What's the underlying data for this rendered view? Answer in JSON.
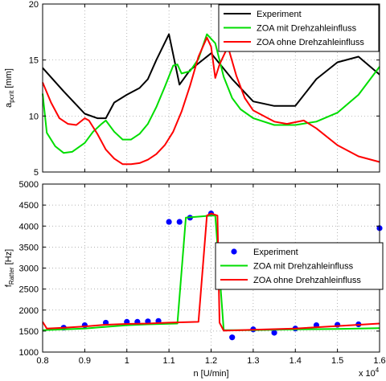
{
  "figure": {
    "x_multiplier_base": "x 10",
    "x_multiplier_exp": "4"
  },
  "chart_data": [
    {
      "type": "line",
      "id": "top",
      "title": "",
      "xlabel": "",
      "ylabel": {
        "main": "a",
        "sub": "pcrit",
        "unit": " [mm]"
      },
      "xlim": [
        0.8,
        1.6
      ],
      "ylim": [
        5,
        20
      ],
      "xticks": [
        0.8,
        0.9,
        1.0,
        1.1,
        1.2,
        1.3,
        1.4,
        1.5,
        1.6
      ],
      "xticklabels": [],
      "yticks": [
        5,
        10,
        15,
        20
      ],
      "yticklabels": [
        "5",
        "10",
        "15",
        "20"
      ],
      "grid": true,
      "legend": "top-right",
      "series": [
        {
          "name": "Experiment",
          "color": "#000000",
          "marker": "none",
          "x": [
            0.8,
            0.85,
            0.9,
            0.93,
            0.95,
            0.97,
            1.0,
            1.03,
            1.05,
            1.07,
            1.1,
            1.125,
            1.15,
            1.2,
            1.25,
            1.3,
            1.35,
            1.4,
            1.45,
            1.5,
            1.55,
            1.6
          ],
          "y": [
            14.3,
            12.2,
            10.2,
            9.8,
            9.8,
            11.2,
            11.9,
            12.5,
            13.3,
            15.0,
            17.3,
            12.8,
            14.1,
            15.6,
            13.3,
            11.3,
            10.9,
            10.9,
            13.3,
            14.8,
            15.3,
            13.7
          ]
        },
        {
          "name": "ZOA mit Drehzahleinfluss",
          "color": "#00dd00",
          "marker": "none",
          "x": [
            0.8,
            0.81,
            0.83,
            0.85,
            0.87,
            0.9,
            0.92,
            0.94,
            0.95,
            0.97,
            0.99,
            1.01,
            1.03,
            1.05,
            1.07,
            1.09,
            1.11,
            1.12,
            1.13,
            1.15,
            1.17,
            1.19,
            1.21,
            1.23,
            1.25,
            1.27,
            1.3,
            1.35,
            1.4,
            1.45,
            1.5,
            1.55,
            1.6
          ],
          "y": [
            12.0,
            8.5,
            7.3,
            6.7,
            6.8,
            7.6,
            8.6,
            9.3,
            9.6,
            8.6,
            7.9,
            7.9,
            8.4,
            9.3,
            10.8,
            12.6,
            14.5,
            14.6,
            13.8,
            14.0,
            15.1,
            17.3,
            16.5,
            13.5,
            11.6,
            10.6,
            9.8,
            9.2,
            9.2,
            9.5,
            10.3,
            11.9,
            14.4
          ]
        },
        {
          "name": "ZOA ohne Drehzahleinfluss",
          "color": "#ff0000",
          "marker": "none",
          "x": [
            0.8,
            0.82,
            0.84,
            0.86,
            0.88,
            0.9,
            0.91,
            0.93,
            0.95,
            0.97,
            0.99,
            1.01,
            1.03,
            1.05,
            1.07,
            1.09,
            1.11,
            1.13,
            1.15,
            1.17,
            1.19,
            1.2,
            1.21,
            1.22,
            1.24,
            1.26,
            1.28,
            1.3,
            1.35,
            1.38,
            1.42,
            1.45,
            1.5,
            1.55,
            1.6
          ],
          "y": [
            13.0,
            11.2,
            9.8,
            9.3,
            9.2,
            9.8,
            9.6,
            8.4,
            7.0,
            6.2,
            5.7,
            5.7,
            5.8,
            6.1,
            6.6,
            7.4,
            8.6,
            10.4,
            12.7,
            15.3,
            17.0,
            16.2,
            13.4,
            14.6,
            16.2,
            13.6,
            11.6,
            10.5,
            9.5,
            9.3,
            9.6,
            8.9,
            7.4,
            6.4,
            5.9
          ]
        }
      ]
    },
    {
      "type": "scatter",
      "id": "bottom",
      "title": "",
      "xlabel": "n [U/min]",
      "ylabel": {
        "main": "f",
        "sub": "Ratter",
        "unit": " [Hz]"
      },
      "xlim": [
        0.8,
        1.6
      ],
      "ylim": [
        1000,
        5000
      ],
      "xticks": [
        0.8,
        0.9,
        1.0,
        1.1,
        1.2,
        1.3,
        1.4,
        1.5,
        1.6
      ],
      "xticklabels": [
        "0.8",
        "0.9",
        "1",
        "1.1",
        "1.2",
        "1.3",
        "1.4",
        "1.5",
        "1.6"
      ],
      "yticks": [
        1000,
        1500,
        2000,
        2500,
        3000,
        3500,
        4000,
        4500,
        5000
      ],
      "yticklabels": [
        "1000",
        "1500",
        "2000",
        "2500",
        "3000",
        "3500",
        "4000",
        "4500",
        "5000"
      ],
      "grid": true,
      "legend": "center-right",
      "series": [
        {
          "name": "Experiment",
          "color": "#0000ff",
          "marker": "circle",
          "line": false,
          "x": [
            0.85,
            0.9,
            0.95,
            1.0,
            1.025,
            1.05,
            1.075,
            1.1,
            1.125,
            1.15,
            1.2,
            1.25,
            1.3,
            1.35,
            1.4,
            1.45,
            1.5,
            1.55,
            1.6
          ],
          "y": [
            1580,
            1640,
            1700,
            1720,
            1720,
            1730,
            1740,
            4100,
            4100,
            4200,
            4300,
            1350,
            1540,
            1460,
            1560,
            1640,
            1650,
            1660,
            3950
          ]
        },
        {
          "name": "ZOA mit Drehzahleinfluss",
          "color": "#00dd00",
          "marker": "none",
          "line": true,
          "x": [
            0.8,
            0.9,
            0.95,
            1.0,
            1.05,
            1.12,
            1.14,
            1.2,
            1.21,
            1.23,
            1.3,
            1.4,
            1.5,
            1.6
          ],
          "y": [
            1520,
            1560,
            1600,
            1640,
            1660,
            1680,
            4200,
            4250,
            4250,
            1520,
            1520,
            1540,
            1550,
            1570
          ]
        },
        {
          "name": "ZOA ohne Drehzahleinfluss",
          "color": "#ff0000",
          "marker": "none",
          "line": true,
          "x": [
            0.8,
            0.81,
            0.85,
            0.9,
            0.95,
            1.0,
            1.05,
            1.1,
            1.17,
            1.19,
            1.2,
            1.215,
            1.22,
            1.23,
            1.3,
            1.4,
            1.5,
            1.6
          ],
          "y": [
            1720,
            1560,
            1580,
            1610,
            1650,
            1670,
            1680,
            1700,
            1720,
            4250,
            4300,
            4250,
            1700,
            1510,
            1530,
            1560,
            1620,
            1680
          ]
        }
      ]
    }
  ]
}
